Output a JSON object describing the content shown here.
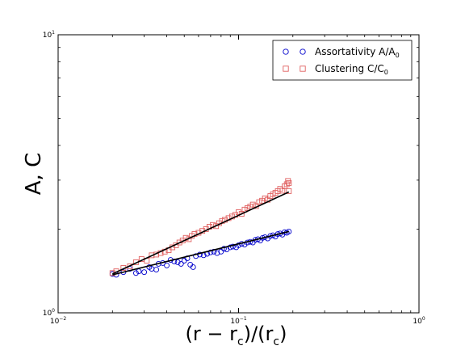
{
  "chart_data": {
    "type": "scatter",
    "xlabel": "(r − r_c)/(r_c)",
    "ylabel": "A, C",
    "x_scale": "log",
    "y_scale": "log",
    "xlim": [
      0.01,
      1
    ],
    "ylim": [
      1,
      10
    ],
    "x_ticks": [
      {
        "base": "10",
        "exp": "−2"
      },
      {
        "base": "10",
        "exp": "−1"
      },
      {
        "base": "10",
        "exp": "0"
      }
    ],
    "y_ticks": [
      {
        "base": "10",
        "exp": "0"
      },
      {
        "base": "10",
        "exp": "1"
      }
    ],
    "grid": false,
    "legend_position": "top-right",
    "series": [
      {
        "name": "Assortativity A/A0",
        "legend_main": "Assortativity A/A",
        "legend_sub": "0",
        "marker": "circle",
        "color": "#0000cc",
        "points": [
          [
            0.02,
            1.38
          ],
          [
            0.021,
            1.37
          ],
          [
            0.023,
            1.4
          ],
          [
            0.025,
            1.44
          ],
          [
            0.027,
            1.39
          ],
          [
            0.028,
            1.41
          ],
          [
            0.03,
            1.4
          ],
          [
            0.032,
            1.46
          ],
          [
            0.033,
            1.44
          ],
          [
            0.035,
            1.43
          ],
          [
            0.036,
            1.5
          ],
          [
            0.038,
            1.51
          ],
          [
            0.04,
            1.48
          ],
          [
            0.042,
            1.55
          ],
          [
            0.044,
            1.53
          ],
          [
            0.046,
            1.52
          ],
          [
            0.048,
            1.5
          ],
          [
            0.05,
            1.54
          ],
          [
            0.052,
            1.57
          ],
          [
            0.054,
            1.49
          ],
          [
            0.056,
            1.46
          ],
          [
            0.058,
            1.6
          ],
          [
            0.061,
            1.62
          ],
          [
            0.064,
            1.61
          ],
          [
            0.067,
            1.63
          ],
          [
            0.07,
            1.65
          ],
          [
            0.073,
            1.66
          ],
          [
            0.076,
            1.64
          ],
          [
            0.08,
            1.66
          ],
          [
            0.083,
            1.7
          ],
          [
            0.086,
            1.69
          ],
          [
            0.09,
            1.72
          ],
          [
            0.093,
            1.73
          ],
          [
            0.097,
            1.72
          ],
          [
            0.1,
            1.75
          ],
          [
            0.104,
            1.77
          ],
          [
            0.108,
            1.76
          ],
          [
            0.112,
            1.79
          ],
          [
            0.116,
            1.8
          ],
          [
            0.12,
            1.79
          ],
          [
            0.124,
            1.83
          ],
          [
            0.128,
            1.84
          ],
          [
            0.132,
            1.82
          ],
          [
            0.136,
            1.86
          ],
          [
            0.14,
            1.87
          ],
          [
            0.145,
            1.85
          ],
          [
            0.15,
            1.89
          ],
          [
            0.155,
            1.9
          ],
          [
            0.16,
            1.88
          ],
          [
            0.165,
            1.92
          ],
          [
            0.17,
            1.93
          ],
          [
            0.175,
            1.91
          ],
          [
            0.18,
            1.95
          ],
          [
            0.185,
            1.94
          ],
          [
            0.19,
            1.96
          ]
        ],
        "fit": [
          [
            0.02,
            1.37
          ],
          [
            0.19,
            1.96
          ]
        ]
      },
      {
        "name": "Clustering C/C0",
        "legend_main": "Clustering C/C",
        "legend_sub": "0",
        "marker": "square",
        "color": "#e06060",
        "points": [
          [
            0.02,
            1.39
          ],
          [
            0.021,
            1.41
          ],
          [
            0.023,
            1.45
          ],
          [
            0.025,
            1.47
          ],
          [
            0.027,
            1.52
          ],
          [
            0.029,
            1.56
          ],
          [
            0.031,
            1.54
          ],
          [
            0.033,
            1.61
          ],
          [
            0.035,
            1.62
          ],
          [
            0.037,
            1.64
          ],
          [
            0.039,
            1.66
          ],
          [
            0.041,
            1.68
          ],
          [
            0.043,
            1.72
          ],
          [
            0.045,
            1.75
          ],
          [
            0.047,
            1.79
          ],
          [
            0.049,
            1.82
          ],
          [
            0.051,
            1.86
          ],
          [
            0.053,
            1.84
          ],
          [
            0.055,
            1.89
          ],
          [
            0.057,
            1.92
          ],
          [
            0.06,
            1.94
          ],
          [
            0.063,
            1.97
          ],
          [
            0.066,
            2.0
          ],
          [
            0.069,
            2.04
          ],
          [
            0.072,
            2.07
          ],
          [
            0.075,
            2.05
          ],
          [
            0.078,
            2.1
          ],
          [
            0.081,
            2.14
          ],
          [
            0.084,
            2.16
          ],
          [
            0.088,
            2.19
          ],
          [
            0.092,
            2.22
          ],
          [
            0.096,
            2.25
          ],
          [
            0.1,
            2.3
          ],
          [
            0.104,
            2.27
          ],
          [
            0.108,
            2.35
          ],
          [
            0.112,
            2.38
          ],
          [
            0.116,
            2.41
          ],
          [
            0.12,
            2.45
          ],
          [
            0.125,
            2.42
          ],
          [
            0.13,
            2.5
          ],
          [
            0.135,
            2.53
          ],
          [
            0.14,
            2.58
          ],
          [
            0.145,
            2.55
          ],
          [
            0.15,
            2.63
          ],
          [
            0.155,
            2.67
          ],
          [
            0.16,
            2.7
          ],
          [
            0.165,
            2.74
          ],
          [
            0.17,
            2.79
          ],
          [
            0.175,
            2.75
          ],
          [
            0.18,
            2.85
          ],
          [
            0.185,
            2.9
          ],
          [
            0.19,
            2.93
          ],
          [
            0.19,
            2.74
          ],
          [
            0.188,
            2.98
          ]
        ],
        "fit": [
          [
            0.02,
            1.38
          ],
          [
            0.19,
            2.72
          ]
        ]
      }
    ]
  }
}
